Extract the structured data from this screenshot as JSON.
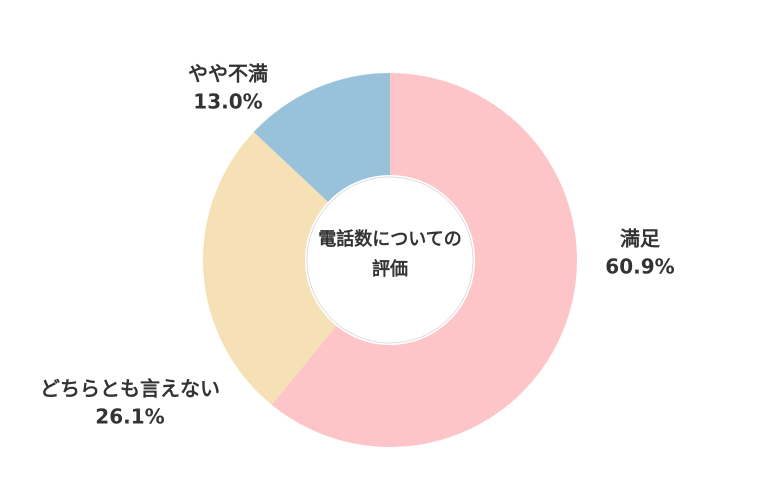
{
  "chart_data": {
    "type": "donut",
    "title": "電話数についての評価",
    "categories": [
      "満足",
      "どちらとも言えない",
      "やや不満"
    ],
    "values": [
      60.9,
      26.1,
      13.0
    ],
    "value_labels": [
      "60.9%",
      "26.1%",
      "13.0%"
    ],
    "colors": [
      "#fdc5c8",
      "#f5e1b5",
      "#97c2da"
    ]
  }
}
